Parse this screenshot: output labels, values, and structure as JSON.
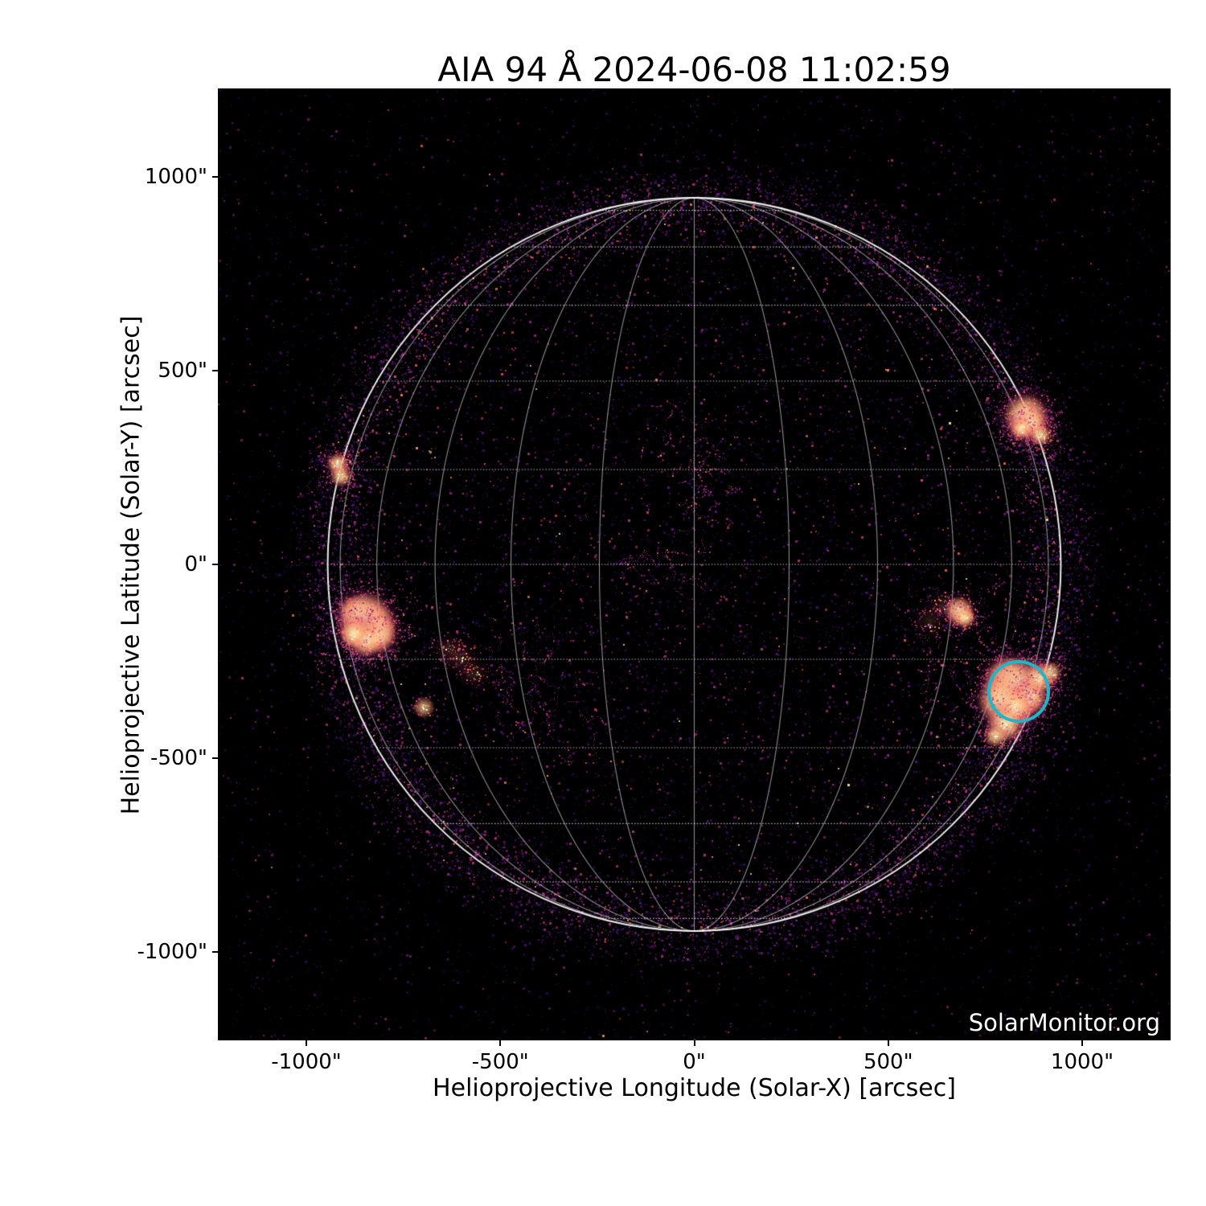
{
  "figure": {
    "background": "#ffffff",
    "text_color": "#000000"
  },
  "watermark": "SolarMonitor.org",
  "chart_data": {
    "type": "heatmap",
    "title": "AIA 94 Å 2024-06-08 11:02:59",
    "instrument": "AIA",
    "wavelength": "94 Å",
    "datetime": "2024-06-08 11:02:59",
    "xlabel": "Helioprojective Longitude (Solar-X) [arcsec]",
    "ylabel": "Helioprojective Latitude (Solar-Y) [arcsec]",
    "xlim": [
      -1228,
      1228
    ],
    "ylim": [
      -1228,
      1228
    ],
    "grid_on": true,
    "xticks": [
      {
        "v": -1000,
        "label": "-1000\""
      },
      {
        "v": -500,
        "label": "-500\""
      },
      {
        "v": 0,
        "label": "0\""
      },
      {
        "v": 500,
        "label": "500\""
      },
      {
        "v": 1000,
        "label": "1000\""
      }
    ],
    "yticks": [
      {
        "v": 1000,
        "label": "1000\""
      },
      {
        "v": 500,
        "label": "500\""
      },
      {
        "v": 0,
        "label": "0\""
      },
      {
        "v": -500,
        "label": "-500\""
      },
      {
        "v": -1000,
        "label": "-1000\""
      }
    ],
    "tick": {
      "length": 7,
      "width": 2,
      "color": "#000000",
      "label_pad": 12
    },
    "background": "#000000",
    "limb": {
      "radius_arcsec": 945,
      "color": "rgba(255,255,255,0.92)",
      "width": 2
    },
    "grid": {
      "spacing_deg": 15,
      "latitude_color": "rgba(255,255,255,0.72)",
      "meridian_color": "rgba(255,255,255,0.55)",
      "latitude_dash": [
        1.5,
        2.2
      ],
      "line_width": 1.1
    },
    "annotation": {
      "type": "circle",
      "x": 836,
      "y": -327,
      "r": 76,
      "color": "#1db7c9",
      "stroke_width": 4.5,
      "meaning": "flagged-active-region"
    },
    "palette": {
      "dim": [
        "#1f114b",
        "#2d1160",
        "#451077",
        "#57157e"
      ],
      "mid": [
        "#721f81",
        "#8c2981",
        "#9f2f7f"
      ],
      "pink": [
        "#b73779",
        "#c43c75"
      ],
      "rose": [
        "#de4968",
        "#e95462"
      ],
      "flame": [
        "#f7705c",
        "#fc8961",
        "#fe9f6d"
      ],
      "pale": [
        "#fecb8b",
        "#fde2a3"
      ],
      "core": [
        "#fcfdbf",
        "#fff8d8"
      ]
    },
    "noise": {
      "seed": 987654321,
      "inside_count": 14500,
      "outside_count": 13000,
      "haze_count": 2500,
      "limb_speckle": 900
    },
    "active_regions": [
      {
        "x": -872,
        "y": -126,
        "core": 5,
        "glow": 16,
        "i": 0.95
      },
      {
        "x": -847,
        "y": -137,
        "core": 7,
        "glow": 20,
        "i": 1.0
      },
      {
        "x": -824,
        "y": -158,
        "core": 6,
        "glow": 18,
        "i": 1.0
      },
      {
        "x": -816,
        "y": -182,
        "core": 5,
        "glow": 16,
        "i": 0.95
      },
      {
        "x": -847,
        "y": -193,
        "core": 5,
        "glow": 15,
        "i": 0.9
      },
      {
        "x": -878,
        "y": -178,
        "core": 4,
        "glow": 13,
        "i": 0.85
      },
      {
        "x": -919,
        "y": 259,
        "core": 3,
        "glow": 10,
        "i": 0.8
      },
      {
        "x": -911,
        "y": 228,
        "core": 3,
        "glow": 9,
        "i": 0.7
      },
      {
        "x": 855,
        "y": 383,
        "core": 6,
        "glow": 20,
        "i": 1.0
      },
      {
        "x": 869,
        "y": 363,
        "core": 4,
        "glow": 14,
        "i": 0.9
      },
      {
        "x": 892,
        "y": 334,
        "core": 3,
        "glow": 11,
        "i": 0.7
      },
      {
        "x": 842,
        "y": 350,
        "core": 3,
        "glow": 10,
        "i": 0.75
      },
      {
        "x": 805,
        "y": -296,
        "core": 6,
        "glow": 18,
        "i": 0.95
      },
      {
        "x": 832,
        "y": -321,
        "core": 9,
        "glow": 26,
        "i": 1.0
      },
      {
        "x": 859,
        "y": -340,
        "core": 5,
        "glow": 15,
        "i": 0.9
      },
      {
        "x": 795,
        "y": -352,
        "core": 7,
        "glow": 20,
        "i": 0.95
      },
      {
        "x": 826,
        "y": -369,
        "core": 5,
        "glow": 15,
        "i": 0.9
      },
      {
        "x": 801,
        "y": -412,
        "core": 5,
        "glow": 15,
        "i": 0.85
      },
      {
        "x": 776,
        "y": -443,
        "core": 3,
        "glow": 10,
        "i": 0.7
      },
      {
        "x": 890,
        "y": -292,
        "core": 4,
        "glow": 13,
        "i": 0.8
      },
      {
        "x": 919,
        "y": -278,
        "core": 3,
        "glow": 10,
        "i": 0.65
      },
      {
        "x": 683,
        "y": -120,
        "core": 4,
        "glow": 12,
        "i": 0.9
      },
      {
        "x": 697,
        "y": -137,
        "core": 3,
        "glow": 9,
        "i": 0.75
      },
      {
        "x": -697,
        "y": -369,
        "core": 3,
        "glow": 8,
        "i": 0.55
      },
      {
        "x": -604,
        "y": -240,
        "core": 2,
        "glow": 12,
        "i": 0.4
      },
      {
        "x": -567,
        "y": -282,
        "core": 2,
        "glow": 11,
        "i": 0.35
      },
      {
        "x": -637,
        "y": -216,
        "core": 2,
        "glow": 10,
        "i": 0.35
      },
      {
        "x": 608,
        "y": -145,
        "core": 2,
        "glow": 13,
        "i": 0.3
      },
      {
        "x": 639,
        "y": -104,
        "core": 2,
        "glow": 11,
        "i": 0.3
      }
    ],
    "faint_clusters": [
      {
        "x": -38,
        "y": 294,
        "r": 50,
        "n": 150
      },
      {
        "x": 60,
        "y": 250,
        "r": 40,
        "n": 100
      },
      {
        "x": 0,
        "y": 170,
        "r": 35,
        "n": 80
      },
      {
        "x": -150,
        "y": -10,
        "r": 40,
        "n": 110
      },
      {
        "x": -40,
        "y": -20,
        "r": 35,
        "n": 90
      },
      {
        "x": -420,
        "y": -250,
        "r": 70,
        "n": 170
      },
      {
        "x": -300,
        "y": -430,
        "r": 60,
        "n": 130
      },
      {
        "x": -460,
        "y": -350,
        "r": 45,
        "n": 100
      },
      {
        "x": 700,
        "y": -150,
        "r": 65,
        "n": 170
      },
      {
        "x": 820,
        "y": -330,
        "r": 95,
        "n": 240
      },
      {
        "x": 650,
        "y": -320,
        "r": 60,
        "n": 110
      },
      {
        "x": -850,
        "y": -160,
        "r": 75,
        "n": 200
      },
      {
        "x": 860,
        "y": 370,
        "r": 55,
        "n": 140
      },
      {
        "x": -915,
        "y": 240,
        "r": 45,
        "n": 100
      },
      {
        "x": 683,
        "y": -125,
        "r": 30,
        "n": 70
      }
    ],
    "sparks": [
      {
        "x": -706,
        "y": 1082,
        "c": "#e0455e",
        "s": 3
      },
      {
        "x": -237,
        "y": -1213,
        "c": "#f6882f",
        "s": 3
      },
      {
        "x": 308,
        "y": -1055,
        "c": "#c43c75",
        "s": 2
      }
    ]
  }
}
